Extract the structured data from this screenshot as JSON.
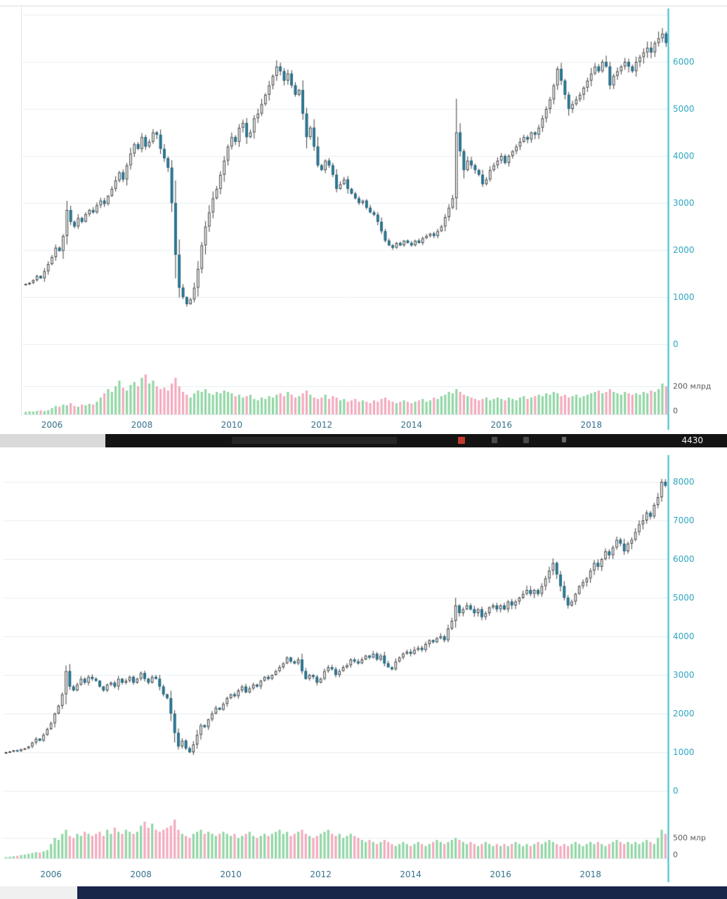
{
  "colors": {
    "grid": "#e8eef2",
    "axis_line": "#35bcd4",
    "y_tick_text": "#2fa6c0",
    "x_tick_text": "#35718c",
    "volume_label_text": "#5a5a5a",
    "candle_up_fill": "#ffffff",
    "candle_up_stroke": "#3d3d3d",
    "candle_down_fill": "#2f7f9d",
    "candle_down_stroke": "#27657d",
    "wick": "#3d3d3d",
    "volume_up": "#90d6a4",
    "volume_down": "#f3a9bd",
    "panel_bg": "#ffffff",
    "taskbar_bg": "#141414",
    "taskbar_left_bg": "#d9d9d9",
    "bottombar_bg": "#18264a",
    "bottombar_left_bg": "#f0f0f0"
  },
  "taskbar": {
    "right_text": "4430",
    "icons": [
      {
        "name": "window-group-icon",
        "color": "#262626"
      },
      {
        "name": "browser-icon",
        "color": "#c23b2e"
      },
      {
        "name": "app-icon",
        "color": "#4a4a4a"
      },
      {
        "name": "app-icon",
        "color": "#4a4a4a"
      },
      {
        "name": "tray-icon",
        "color": "#6a6a6a"
      }
    ]
  },
  "chart_data": [
    {
      "type": "candlestick",
      "title": "",
      "interval": "monthly",
      "start": {
        "year": 2005,
        "month": 6
      },
      "y_ticks": [
        0,
        1000,
        2000,
        3000,
        4000,
        5000,
        6000
      ],
      "y_tick_labels": [
        "0",
        "1000",
        "2000",
        "3000",
        "4000",
        "5000",
        "6000"
      ],
      "ylim": [
        0,
        7000
      ],
      "x_tick_years": [
        2006,
        2008,
        2010,
        2012,
        2014,
        2016,
        2018
      ],
      "x_tick_labels": [
        "2006",
        "2008",
        "2010",
        "2012",
        "2014",
        "2016",
        "2018"
      ],
      "volume_axis_label": "200 млрд",
      "volume_axis_value": 200,
      "volume_zero_label": "0",
      "closes": [
        1280,
        1300,
        1360,
        1450,
        1400,
        1550,
        1700,
        1850,
        2050,
        1980,
        2300,
        2850,
        2600,
        2500,
        2680,
        2600,
        2760,
        2850,
        2800,
        2950,
        3050,
        2980,
        3150,
        3300,
        3480,
        3650,
        3500,
        3800,
        4050,
        4250,
        4150,
        4400,
        4200,
        4300,
        4500,
        4450,
        4150,
        3950,
        3750,
        3000,
        1900,
        1200,
        1000,
        850,
        950,
        1200,
        1600,
        2100,
        2500,
        2800,
        3100,
        3300,
        3600,
        3900,
        4200,
        4400,
        4300,
        4600,
        4700,
        4400,
        4500,
        4800,
        4900,
        5100,
        5300,
        5500,
        5700,
        5900,
        5800,
        5600,
        5750,
        5500,
        5300,
        5400,
        4900,
        4400,
        4600,
        4200,
        3800,
        3700,
        3900,
        3800,
        3600,
        3300,
        3400,
        3500,
        3300,
        3200,
        3100,
        3000,
        3050,
        2900,
        2800,
        2750,
        2600,
        2400,
        2200,
        2100,
        2050,
        2150,
        2100,
        2200,
        2150,
        2100,
        2200,
        2150,
        2250,
        2300,
        2350,
        2300,
        2400,
        2500,
        2700,
        2900,
        3100,
        4500,
        4100,
        3700,
        3900,
        3800,
        3700,
        3600,
        3400,
        3500,
        3700,
        3800,
        3900,
        4000,
        3850,
        4000,
        4100,
        4200,
        4300,
        4400,
        4350,
        4500,
        4450,
        4600,
        4800,
        5000,
        5200,
        5500,
        5850,
        5600,
        5300,
        5000,
        5100,
        5200,
        5300,
        5450,
        5600,
        5750,
        5900,
        5800,
        6000,
        5900,
        5500,
        5700,
        5800,
        5900,
        6000,
        5900,
        5800,
        6000,
        6100,
        6200,
        6300,
        6200,
        6400,
        6500,
        6600,
        6400
      ],
      "volumes": [
        18,
        22,
        20,
        25,
        28,
        24,
        30,
        45,
        60,
        55,
        70,
        65,
        80,
        60,
        55,
        70,
        65,
        75,
        70,
        90,
        120,
        150,
        180,
        160,
        200,
        240,
        190,
        170,
        210,
        230,
        200,
        260,
        285,
        220,
        240,
        200,
        180,
        190,
        170,
        220,
        260,
        200,
        160,
        140,
        120,
        150,
        170,
        160,
        180,
        150,
        140,
        160,
        150,
        170,
        160,
        150,
        130,
        140,
        120,
        130,
        140,
        110,
        100,
        120,
        110,
        130,
        120,
        140,
        150,
        130,
        160,
        140,
        120,
        130,
        150,
        170,
        140,
        120,
        110,
        120,
        140,
        110,
        130,
        120,
        100,
        110,
        90,
        100,
        110,
        90,
        100,
        90,
        80,
        100,
        90,
        110,
        120,
        100,
        90,
        80,
        90,
        100,
        90,
        80,
        90,
        100,
        110,
        90,
        100,
        120,
        110,
        130,
        140,
        160,
        150,
        180,
        160,
        140,
        130,
        120,
        110,
        100,
        110,
        120,
        100,
        110,
        120,
        110,
        100,
        120,
        110,
        100,
        120,
        130,
        110,
        120,
        130,
        140,
        130,
        150,
        140,
        160,
        150,
        130,
        140,
        120,
        130,
        140,
        120,
        130,
        140,
        150,
        160,
        170,
        150,
        160,
        180,
        160,
        150,
        140,
        160,
        150,
        140,
        150,
        140,
        160,
        150,
        170,
        160,
        180,
        220,
        200
      ]
    },
    {
      "type": "candlestick",
      "title": "",
      "interval": "monthly",
      "start": {
        "year": 2005,
        "month": 1
      },
      "y_ticks": [
        0,
        1000,
        2000,
        3000,
        4000,
        5000,
        6000,
        7000,
        8000
      ],
      "y_tick_labels": [
        "0",
        "1000",
        "2000",
        "3000",
        "4000",
        "5000",
        "6000",
        "7000",
        "8000"
      ],
      "ylim": [
        0,
        8000
      ],
      "x_tick_years": [
        2006,
        2008,
        2010,
        2012,
        2014,
        2016,
        2018
      ],
      "x_tick_labels": [
        "2006",
        "2008",
        "2010",
        "2012",
        "2014",
        "2016",
        "2018"
      ],
      "volume_axis_label": "500 млр",
      "volume_axis_value": 500,
      "volume_zero_label": "0",
      "closes": [
        1000,
        1020,
        1050,
        1030,
        1080,
        1100,
        1150,
        1250,
        1350,
        1300,
        1450,
        1600,
        1750,
        2000,
        2200,
        2500,
        3100,
        2700,
        2600,
        2750,
        2900,
        2800,
        2950,
        2900,
        2850,
        2700,
        2600,
        2750,
        2800,
        2700,
        2900,
        2800,
        2850,
        2950,
        2800,
        2900,
        3050,
        2900,
        2800,
        2950,
        2900,
        2700,
        2500,
        2400,
        2000,
        1500,
        1150,
        1300,
        1100,
        1000,
        1200,
        1450,
        1700,
        1650,
        1850,
        2000,
        2150,
        2100,
        2250,
        2400,
        2500,
        2450,
        2600,
        2700,
        2550,
        2650,
        2750,
        2700,
        2850,
        2950,
        2900,
        3000,
        3100,
        3200,
        3300,
        3450,
        3350,
        3300,
        3400,
        3100,
        2900,
        3000,
        2950,
        2800,
        2900,
        3100,
        3200,
        3150,
        3000,
        3100,
        3200,
        3250,
        3400,
        3350,
        3300,
        3400,
        3500,
        3450,
        3550,
        3400,
        3500,
        3300,
        3200,
        3150,
        3350,
        3450,
        3550,
        3600,
        3550,
        3650,
        3700,
        3650,
        3800,
        3900,
        3850,
        3950,
        4000,
        3900,
        4200,
        4400,
        4800,
        4600,
        4700,
        4800,
        4700,
        4600,
        4700,
        4500,
        4600,
        4750,
        4800,
        4700,
        4800,
        4700,
        4900,
        4800,
        4900,
        5000,
        5100,
        5200,
        5100,
        5200,
        5100,
        5300,
        5500,
        5700,
        5900,
        5600,
        5300,
        5000,
        4800,
        4900,
        5100,
        5300,
        5400,
        5500,
        5700,
        5900,
        5800,
        6000,
        6200,
        6100,
        6300,
        6500,
        6400,
        6200,
        6400,
        6500,
        6700,
        6900,
        7000,
        7200,
        7100,
        7400,
        7600,
        8000,
        7900
      ],
      "volumes": [
        30,
        40,
        50,
        60,
        80,
        90,
        110,
        130,
        150,
        140,
        170,
        200,
        350,
        500,
        450,
        600,
        700,
        550,
        500,
        600,
        550,
        650,
        600,
        550,
        600,
        650,
        550,
        700,
        600,
        750,
        650,
        600,
        700,
        650,
        600,
        650,
        800,
        900,
        750,
        850,
        700,
        650,
        700,
        750,
        800,
        950,
        700,
        600,
        550,
        500,
        600,
        650,
        700,
        600,
        650,
        600,
        550,
        600,
        650,
        600,
        550,
        600,
        500,
        550,
        600,
        650,
        550,
        500,
        550,
        600,
        550,
        600,
        650,
        700,
        600,
        650,
        550,
        600,
        650,
        700,
        600,
        550,
        500,
        550,
        600,
        650,
        700,
        600,
        550,
        600,
        500,
        550,
        600,
        550,
        500,
        450,
        400,
        450,
        400,
        350,
        400,
        450,
        400,
        350,
        300,
        350,
        400,
        350,
        300,
        350,
        400,
        350,
        300,
        350,
        400,
        450,
        400,
        350,
        400,
        450,
        500,
        450,
        400,
        350,
        400,
        350,
        300,
        350,
        400,
        350,
        300,
        350,
        300,
        350,
        300,
        350,
        400,
        350,
        300,
        350,
        300,
        350,
        400,
        350,
        400,
        450,
        400,
        350,
        300,
        350,
        300,
        350,
        400,
        350,
        300,
        350,
        400,
        350,
        400,
        350,
        300,
        350,
        400,
        450,
        400,
        350,
        400,
        350,
        400,
        350,
        400,
        450,
        400,
        350,
        500,
        700,
        600
      ]
    }
  ]
}
